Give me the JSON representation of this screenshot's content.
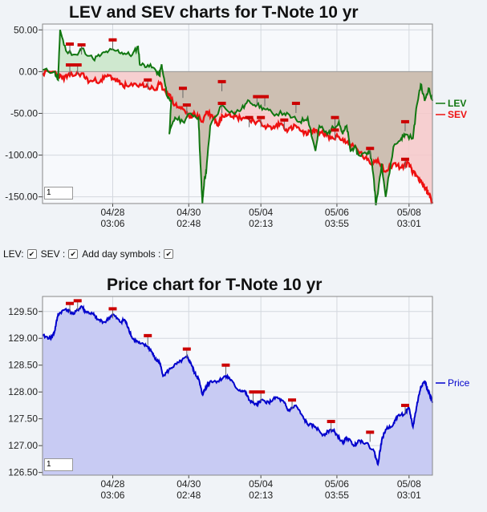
{
  "lev_chart": {
    "title": "LEV and SEV charts for T-Note 10 yr",
    "input_value": "1"
  },
  "controls": {
    "lev_label": "LEV:",
    "sev_label": "SEV :",
    "day_symbols_label": "Add day symbols :",
    "check": "✔"
  },
  "price_chart": {
    "title": "Price chart for T-Note 10 yr",
    "input_value": "1"
  },
  "colors": {
    "lev": "#117711",
    "sev": "#ee1111",
    "price": "#0000cc",
    "price_fill": "#c8cbf3",
    "lev_fill_above": "#cfe8cf",
    "sev_fill": "#f6c8c8",
    "zero_fill": "#cdbfb2",
    "marker": "#cc0000"
  },
  "chart_data": [
    {
      "type": "line",
      "title": "LEV and SEV charts for T-Note 10 yr",
      "x_ticks": [
        {
          "date": "04/28",
          "time": "03:06",
          "x": 0.18
        },
        {
          "date": "04/30",
          "time": "02:48",
          "x": 0.375
        },
        {
          "date": "05/04",
          "time": "02:13",
          "x": 0.56
        },
        {
          "date": "05/06",
          "time": "03:55",
          "x": 0.755
        },
        {
          "date": "05/08",
          "time": "03:01",
          "x": 0.94
        }
      ],
      "y_ticks": [
        "50.00",
        "0.00",
        "-50.00",
        "-100.00",
        "-150.00"
      ],
      "ylim": [
        -158,
        57
      ],
      "y_tick_values": [
        50,
        0,
        -50,
        -100,
        -150
      ],
      "legend": [
        "LEV",
        "SEV"
      ],
      "series": [
        {
          "name": "LEV",
          "points": [
            [
              0.0,
              2
            ],
            [
              0.03,
              0
            ],
            [
              0.04,
              -10
            ],
            [
              0.045,
              50
            ],
            [
              0.06,
              25
            ],
            [
              0.09,
              20
            ],
            [
              0.1,
              28
            ],
            [
              0.13,
              15
            ],
            [
              0.15,
              20
            ],
            [
              0.17,
              25
            ],
            [
              0.19,
              25
            ],
            [
              0.21,
              22
            ],
            [
              0.23,
              20
            ],
            [
              0.245,
              30
            ],
            [
              0.25,
              8
            ],
            [
              0.27,
              8
            ],
            [
              0.29,
              2
            ],
            [
              0.3,
              -5
            ],
            [
              0.305,
              8
            ],
            [
              0.31,
              -5
            ],
            [
              0.32,
              -30
            ],
            [
              0.33,
              -35
            ],
            [
              0.325,
              -75
            ],
            [
              0.34,
              -55
            ],
            [
              0.36,
              -60
            ],
            [
              0.38,
              -50
            ],
            [
              0.4,
              -55
            ],
            [
              0.405,
              -110
            ],
            [
              0.41,
              -158
            ],
            [
              0.415,
              -130
            ],
            [
              0.42,
              -120
            ],
            [
              0.43,
              -65
            ],
            [
              0.46,
              -40
            ],
            [
              0.49,
              -50
            ],
            [
              0.51,
              -45
            ],
            [
              0.53,
              -35
            ],
            [
              0.55,
              -40
            ],
            [
              0.57,
              -45
            ],
            [
              0.59,
              -50
            ],
            [
              0.62,
              -50
            ],
            [
              0.64,
              -55
            ],
            [
              0.66,
              -60
            ],
            [
              0.68,
              -55
            ],
            [
              0.7,
              -95
            ],
            [
              0.71,
              -65
            ],
            [
              0.73,
              -75
            ],
            [
              0.74,
              -70
            ],
            [
              0.76,
              -60
            ],
            [
              0.77,
              -75
            ],
            [
              0.78,
              -65
            ],
            [
              0.79,
              -95
            ],
            [
              0.8,
              -90
            ],
            [
              0.81,
              -100
            ],
            [
              0.83,
              -98
            ],
            [
              0.84,
              -95
            ],
            [
              0.85,
              -130
            ],
            [
              0.855,
              -160
            ],
            [
              0.87,
              -110
            ],
            [
              0.88,
              -150
            ],
            [
              0.9,
              -90
            ],
            [
              0.92,
              -80
            ],
            [
              0.93,
              -75
            ],
            [
              0.95,
              -80
            ],
            [
              0.96,
              -40
            ],
            [
              0.97,
              -15
            ],
            [
              0.98,
              -35
            ],
            [
              0.99,
              -20
            ],
            [
              1.0,
              -35
            ]
          ]
        },
        {
          "name": "SEV",
          "points": [
            [
              0.0,
              -2
            ],
            [
              0.03,
              0
            ],
            [
              0.05,
              -8
            ],
            [
              0.07,
              -5
            ],
            [
              0.1,
              -2
            ],
            [
              0.12,
              -12
            ],
            [
              0.15,
              -10
            ],
            [
              0.17,
              -5
            ],
            [
              0.19,
              -10
            ],
            [
              0.2,
              -15
            ],
            [
              0.22,
              -18
            ],
            [
              0.25,
              -15
            ],
            [
              0.27,
              -18
            ],
            [
              0.29,
              -22
            ],
            [
              0.3,
              -15
            ],
            [
              0.32,
              -25
            ],
            [
              0.34,
              -40
            ],
            [
              0.36,
              -45
            ],
            [
              0.38,
              -55
            ],
            [
              0.39,
              -50
            ],
            [
              0.41,
              -60
            ],
            [
              0.42,
              -48
            ],
            [
              0.44,
              -55
            ],
            [
              0.45,
              -65
            ],
            [
              0.46,
              -52
            ],
            [
              0.48,
              -50
            ],
            [
              0.5,
              -55
            ],
            [
              0.52,
              -55
            ],
            [
              0.55,
              -60
            ],
            [
              0.57,
              -65
            ],
            [
              0.59,
              -68
            ],
            [
              0.61,
              -62
            ],
            [
              0.63,
              -70
            ],
            [
              0.65,
              -65
            ],
            [
              0.67,
              -75
            ],
            [
              0.69,
              -72
            ],
            [
              0.7,
              -70
            ],
            [
              0.72,
              -75
            ],
            [
              0.74,
              -80
            ],
            [
              0.76,
              -78
            ],
            [
              0.78,
              -85
            ],
            [
              0.8,
              -90
            ],
            [
              0.82,
              -100
            ],
            [
              0.84,
              -110
            ],
            [
              0.86,
              -105
            ],
            [
              0.88,
              -120
            ],
            [
              0.9,
              -110
            ],
            [
              0.92,
              -115
            ],
            [
              0.94,
              -110
            ],
            [
              0.95,
              -120
            ],
            [
              0.96,
              -125
            ],
            [
              0.97,
              -130
            ],
            [
              0.98,
              -140
            ],
            [
              0.99,
              -145
            ],
            [
              1.0,
              -158
            ]
          ]
        }
      ],
      "markers_lev": [
        [
          0.07,
          33
        ],
        [
          0.1,
          32
        ],
        [
          0.18,
          38
        ],
        [
          0.27,
          -10
        ],
        [
          0.36,
          -20
        ],
        [
          0.46,
          -12
        ],
        [
          0.55,
          -30
        ],
        [
          0.57,
          -30
        ],
        [
          0.65,
          -38
        ],
        [
          0.75,
          -55
        ],
        [
          0.84,
          -92
        ],
        [
          0.93,
          -60
        ]
      ],
      "markers_sev": [
        [
          0.07,
          8
        ],
        [
          0.09,
          8
        ],
        [
          0.37,
          -40
        ],
        [
          0.46,
          -38
        ],
        [
          0.53,
          -55
        ],
        [
          0.56,
          -55
        ],
        [
          0.62,
          -58
        ],
        [
          0.75,
          -70
        ],
        [
          0.93,
          -105
        ]
      ]
    },
    {
      "type": "area",
      "title": "Price chart for T-Note 10 yr",
      "x_ticks": [
        {
          "date": "04/28",
          "time": "03:06",
          "x": 0.18
        },
        {
          "date": "04/30",
          "time": "02:48",
          "x": 0.375
        },
        {
          "date": "05/04",
          "time": "02:13",
          "x": 0.56
        },
        {
          "date": "05/06",
          "time": "03:55",
          "x": 0.755
        },
        {
          "date": "05/08",
          "time": "03:01",
          "x": 0.94
        }
      ],
      "y_ticks": [
        "129.50",
        "129.00",
        "128.50",
        "128.00",
        "127.50",
        "127.00",
        "126.50"
      ],
      "ylim": [
        126.45,
        129.78
      ],
      "y_tick_values": [
        129.5,
        129.0,
        128.5,
        128.0,
        127.5,
        127.0,
        126.5
      ],
      "legend": [
        "Price"
      ],
      "series": [
        {
          "name": "Price",
          "points": [
            [
              0.0,
              129.05
            ],
            [
              0.02,
              129.0
            ],
            [
              0.03,
              129.1
            ],
            [
              0.04,
              129.45
            ],
            [
              0.06,
              129.55
            ],
            [
              0.08,
              129.45
            ],
            [
              0.1,
              129.6
            ],
            [
              0.11,
              129.5
            ],
            [
              0.13,
              129.45
            ],
            [
              0.14,
              129.35
            ],
            [
              0.16,
              129.3
            ],
            [
              0.18,
              129.45
            ],
            [
              0.2,
              129.3
            ],
            [
              0.21,
              129.35
            ],
            [
              0.22,
              129.2
            ],
            [
              0.23,
              129.0
            ],
            [
              0.25,
              128.9
            ],
            [
              0.27,
              128.85
            ],
            [
              0.28,
              128.75
            ],
            [
              0.29,
              128.6
            ],
            [
              0.3,
              128.55
            ],
            [
              0.31,
              128.3
            ],
            [
              0.33,
              128.45
            ],
            [
              0.35,
              128.55
            ],
            [
              0.37,
              128.65
            ],
            [
              0.38,
              128.55
            ],
            [
              0.39,
              128.35
            ],
            [
              0.4,
              128.25
            ],
            [
              0.41,
              127.95
            ],
            [
              0.42,
              128.1
            ],
            [
              0.43,
              128.2
            ],
            [
              0.45,
              128.2
            ],
            [
              0.47,
              128.3
            ],
            [
              0.48,
              128.25
            ],
            [
              0.5,
              128.05
            ],
            [
              0.52,
              128.0
            ],
            [
              0.53,
              127.85
            ],
            [
              0.55,
              127.75
            ],
            [
              0.56,
              127.85
            ],
            [
              0.58,
              127.8
            ],
            [
              0.6,
              127.9
            ],
            [
              0.62,
              127.8
            ],
            [
              0.63,
              127.65
            ],
            [
              0.65,
              127.75
            ],
            [
              0.67,
              127.5
            ],
            [
              0.68,
              127.4
            ],
            [
              0.7,
              127.35
            ],
            [
              0.72,
              127.2
            ],
            [
              0.74,
              127.3
            ],
            [
              0.75,
              127.25
            ],
            [
              0.77,
              127.05
            ],
            [
              0.78,
              127.15
            ],
            [
              0.8,
              127.0
            ],
            [
              0.81,
              127.1
            ],
            [
              0.83,
              127.05
            ],
            [
              0.85,
              126.9
            ],
            [
              0.86,
              126.65
            ],
            [
              0.87,
              127.1
            ],
            [
              0.88,
              127.3
            ],
            [
              0.9,
              127.4
            ],
            [
              0.91,
              127.55
            ],
            [
              0.93,
              127.6
            ],
            [
              0.94,
              127.7
            ],
            [
              0.95,
              127.35
            ],
            [
              0.96,
              127.75
            ],
            [
              0.97,
              128.1
            ],
            [
              0.98,
              128.2
            ],
            [
              0.99,
              128.0
            ],
            [
              1.0,
              127.8
            ]
          ]
        }
      ],
      "markers": [
        [
          0.07,
          129.65
        ],
        [
          0.09,
          129.7
        ],
        [
          0.18,
          129.55
        ],
        [
          0.27,
          129.05
        ],
        [
          0.37,
          128.8
        ],
        [
          0.47,
          128.5
        ],
        [
          0.54,
          128.0
        ],
        [
          0.56,
          128.0
        ],
        [
          0.64,
          127.85
        ],
        [
          0.74,
          127.45
        ],
        [
          0.84,
          127.25
        ],
        [
          0.93,
          127.75
        ]
      ]
    }
  ]
}
